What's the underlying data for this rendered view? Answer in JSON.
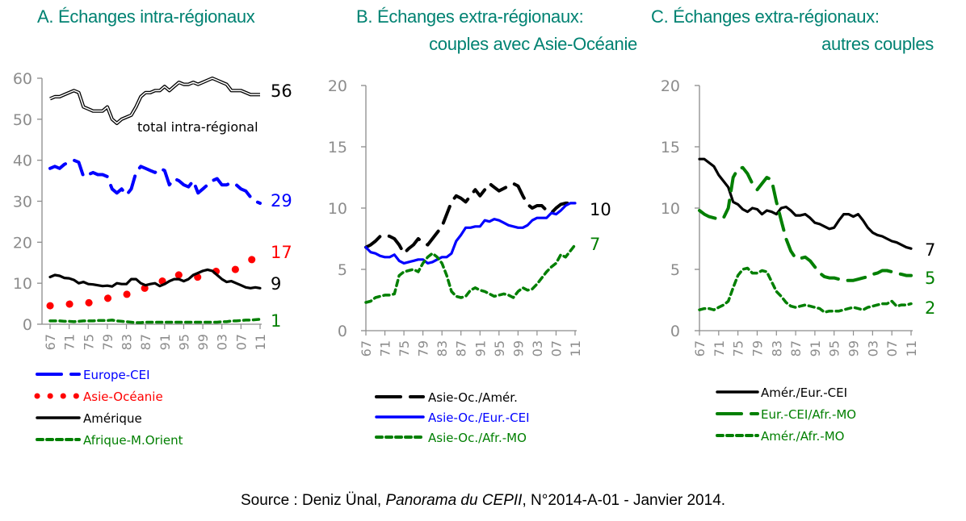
{
  "source": {
    "prefix": "Source : Deniz Ünal, ",
    "publication": "Panorama du CEPII",
    "suffix": ", N°2014-A-01 - Janvier 2014."
  },
  "colors": {
    "title": "#008272",
    "blue": "#0000ff",
    "red": "#ff0000",
    "black": "#000000",
    "green": "#007f00",
    "axis": "#8c8c8c"
  },
  "chart_data": [
    {
      "type": "line",
      "panel": "A",
      "title": [
        "A. Échanges intra-régionaux"
      ],
      "xlabel": "",
      "ylabel": "",
      "ylim": [
        0,
        60
      ],
      "yticks": [
        0,
        10,
        20,
        30,
        40,
        50,
        60
      ],
      "x": [
        1967,
        1968,
        1969,
        1970,
        1971,
        1972,
        1973,
        1974,
        1975,
        1976,
        1977,
        1978,
        1979,
        1980,
        1981,
        1982,
        1983,
        1984,
        1985,
        1986,
        1987,
        1988,
        1989,
        1990,
        1991,
        1992,
        1993,
        1994,
        1995,
        1996,
        1997,
        1998,
        1999,
        2000,
        2001,
        2002,
        2003,
        2004,
        2005,
        2006,
        2007,
        2008,
        2009,
        2010,
        2011
      ],
      "xtick_labels": [
        "67",
        "71",
        "75",
        "79",
        "83",
        "87",
        "91",
        "95",
        "99",
        "03",
        "07",
        "11"
      ],
      "grid": false,
      "annotations": [
        {
          "text": "total intra-régional",
          "near_series": "total"
        }
      ],
      "series": [
        {
          "name": "total",
          "label": "56",
          "style": "double",
          "color": "#000000",
          "values": [
            55,
            55.5,
            55.5,
            56,
            56.5,
            57,
            56.5,
            53,
            52.5,
            52,
            52,
            52,
            53,
            50,
            49,
            50,
            50.5,
            51,
            53,
            55.5,
            56.5,
            56.5,
            57,
            57,
            58,
            57,
            58,
            59,
            58.5,
            58.5,
            59,
            58.5,
            59,
            59.5,
            60,
            59.5,
            59,
            58.5,
            57,
            57,
            57,
            56.5,
            56,
            56,
            56
          ]
        },
        {
          "name": "Europe-CEI",
          "label": "29",
          "style": "longdash",
          "color": "#0000ff",
          "values": [
            38,
            38.5,
            38,
            39,
            39.5,
            40,
            39.5,
            36,
            36.5,
            37,
            36.5,
            36.5,
            36,
            33,
            32,
            33,
            31.5,
            33,
            37,
            38.5,
            38,
            37.5,
            37,
            38,
            37.5,
            34,
            35.5,
            35,
            34,
            33.5,
            35,
            32,
            33,
            34,
            35,
            35.5,
            34,
            34,
            34.5,
            34,
            33,
            32.5,
            31,
            30,
            29.5
          ]
        },
        {
          "name": "Asie-Océanie",
          "label": "17",
          "style": "dots",
          "color": "#ff0000",
          "values": [
            4.5,
            4.6,
            4.7,
            4.8,
            4.9,
            5,
            5.1,
            5.2,
            5.2,
            5.5,
            5.7,
            6,
            6.3,
            6.6,
            6.9,
            7.1,
            7.3,
            7.3,
            8,
            8.7,
            8.8,
            9,
            9.3,
            10,
            11,
            12,
            12.5,
            12,
            11.5,
            11.3,
            11.3,
            11.5,
            11.6,
            12,
            12.5,
            13,
            13.1,
            13.2,
            13.2,
            13.4,
            13.8,
            14.5,
            15.5,
            16.5,
            16.8
          ]
        },
        {
          "name": "Amérique",
          "label": "9",
          "style": "solid",
          "color": "#000000",
          "values": [
            11.5,
            12,
            11.8,
            11.3,
            11.2,
            10.8,
            10,
            10.3,
            9.8,
            9.7,
            9.5,
            9.3,
            9.4,
            9.2,
            10,
            9.8,
            9.8,
            11,
            11,
            10,
            9.5,
            9.8,
            10,
            9.3,
            9.8,
            10.5,
            11,
            11,
            10.5,
            11,
            12,
            12.5,
            13,
            13.3,
            13,
            12,
            11,
            10.3,
            10.5,
            10,
            9.5,
            9,
            8.8,
            9,
            8.8
          ]
        },
        {
          "name": "Afrique-M.Orient",
          "label": "1",
          "style": "dash",
          "color": "#007f00",
          "values": [
            0.8,
            0.8,
            0.8,
            0.7,
            0.7,
            0.6,
            0.7,
            0.8,
            0.8,
            0.8,
            0.9,
            0.9,
            0.9,
            1,
            0.8,
            0.7,
            0.6,
            0.5,
            0.4,
            0.4,
            0.5,
            0.5,
            0.5,
            0.5,
            0.5,
            0.5,
            0.5,
            0.5,
            0.5,
            0.5,
            0.5,
            0.5,
            0.5,
            0.5,
            0.5,
            0.5,
            0.6,
            0.6,
            0.8,
            0.8,
            0.9,
            1,
            1,
            1.1,
            1.2
          ]
        }
      ],
      "legend": [
        {
          "label": "Europe-CEI",
          "color": "#0000ff",
          "style": "longdash"
        },
        {
          "label": "Asie-Océanie",
          "color": "#ff0000",
          "style": "dots"
        },
        {
          "label": "Amérique",
          "color": "#000000",
          "style": "solid"
        },
        {
          "label": "Afrique-M.Orient",
          "color": "#007f00",
          "style": "dash"
        }
      ],
      "legend_position": "bottom-left"
    },
    {
      "type": "line",
      "panel": "B",
      "title": [
        "B. Échanges extra-régionaux:",
        "couples avec Asie-Océanie"
      ],
      "xlabel": "",
      "ylabel": "",
      "ylim": [
        0,
        20
      ],
      "yticks": [
        0,
        5,
        10,
        15,
        20
      ],
      "x": [
        1967,
        1968,
        1969,
        1970,
        1971,
        1972,
        1973,
        1974,
        1975,
        1976,
        1977,
        1978,
        1979,
        1980,
        1981,
        1982,
        1983,
        1984,
        1985,
        1986,
        1987,
        1988,
        1989,
        1990,
        1991,
        1992,
        1993,
        1994,
        1995,
        1996,
        1997,
        1998,
        1999,
        2000,
        2001,
        2002,
        2003,
        2004,
        2005,
        2006,
        2007,
        2008,
        2009,
        2010,
        2011
      ],
      "xtick_labels": [
        "67",
        "71",
        "75",
        "79",
        "83",
        "87",
        "91",
        "95",
        "99",
        "03",
        "07",
        "11"
      ],
      "grid": false,
      "series": [
        {
          "name": "Asie-Oc./Amér.",
          "label": "10",
          "style": "longdash",
          "color": "#000000",
          "values": [
            6.8,
            7,
            7.3,
            7.7,
            7.8,
            7.7,
            7.5,
            7,
            6.3,
            6.7,
            7,
            7.5,
            7.2,
            7,
            7.5,
            8,
            8.5,
            9.5,
            10.5,
            11,
            10.8,
            10.5,
            11,
            11.5,
            11,
            11.5,
            12,
            11.7,
            11.4,
            11.6,
            11.8,
            12,
            11.8,
            11,
            10.3,
            10,
            10.2,
            10.2,
            9.8,
            9.6,
            10,
            10.3,
            10.4,
            10.4,
            10.4
          ]
        },
        {
          "name": "Asie-Oc./Eur.-CEI",
          "label": "10",
          "style": "solid",
          "color": "#0000ff",
          "values": [
            6.8,
            6.4,
            6.3,
            6.1,
            6,
            6,
            6.2,
            5.7,
            5.5,
            5.6,
            5.7,
            5.8,
            5.8,
            5.5,
            5.6,
            5.8,
            6,
            6,
            6.3,
            7.3,
            7.8,
            8.4,
            8.4,
            8.5,
            8.5,
            9,
            8.9,
            9.1,
            9,
            8.8,
            8.6,
            8.5,
            8.4,
            8.4,
            8.6,
            9,
            9.2,
            9.2,
            9.2,
            9.6,
            9.5,
            9.8,
            10.2,
            10.4,
            10.4
          ]
        },
        {
          "name": "Asie-Oc./Afr.-MO",
          "label": "7",
          "style": "dash",
          "color": "#007f00",
          "values": [
            2.3,
            2.4,
            2.7,
            2.8,
            2.9,
            2.9,
            3,
            4.5,
            4.8,
            4.9,
            5,
            4.8,
            5.5,
            6,
            6.3,
            6,
            5.5,
            4.5,
            3.2,
            2.8,
            2.7,
            2.8,
            3.3,
            3.5,
            3.3,
            3.2,
            3,
            2.8,
            2.9,
            3,
            2.9,
            2.7,
            3.2,
            3.5,
            3.3,
            3.4,
            3.8,
            4.3,
            4.8,
            5.2,
            5.5,
            6.2,
            6,
            6.5,
            7
          ]
        }
      ],
      "legend": [
        {
          "label": "Asie-Oc./Amér.",
          "color": "#000000",
          "style": "longdash"
        },
        {
          "label": "Asie-Oc./Eur.-CEI",
          "color": "#0000ff",
          "style": "solid"
        },
        {
          "label": "Asie-Oc./Afr.-MO",
          "color": "#007f00",
          "style": "dash"
        }
      ],
      "legend_position": "bottom-left"
    },
    {
      "type": "line",
      "panel": "C",
      "title": [
        "C. Échanges extra-régionaux:",
        "autres couples"
      ],
      "xlabel": "",
      "ylabel": "",
      "ylim": [
        0,
        20
      ],
      "yticks": [
        0,
        5,
        10,
        15,
        20
      ],
      "x": [
        1967,
        1968,
        1969,
        1970,
        1971,
        1972,
        1973,
        1974,
        1975,
        1976,
        1977,
        1978,
        1979,
        1980,
        1981,
        1982,
        1983,
        1984,
        1985,
        1986,
        1987,
        1988,
        1989,
        1990,
        1991,
        1992,
        1993,
        1994,
        1995,
        1996,
        1997,
        1998,
        1999,
        2000,
        2001,
        2002,
        2003,
        2004,
        2005,
        2006,
        2007,
        2008,
        2009,
        2010,
        2011
      ],
      "xtick_labels": [
        "67",
        "71",
        "75",
        "79",
        "83",
        "87",
        "91",
        "95",
        "99",
        "03",
        "07",
        "11"
      ],
      "grid": false,
      "series": [
        {
          "name": "Amér./Eur.-CEI",
          "label": "7",
          "style": "solid",
          "color": "#000000",
          "values": [
            14,
            14,
            13.7,
            13.4,
            12.7,
            12.2,
            11.7,
            10.5,
            10.3,
            9.9,
            9.7,
            10,
            9.9,
            9.5,
            9.8,
            9.7,
            9.5,
            10,
            10.1,
            9.8,
            9.4,
            9.4,
            9.5,
            9.2,
            8.8,
            8.7,
            8.5,
            8.3,
            8.4,
            9,
            9.5,
            9.5,
            9.3,
            9.5,
            9,
            8.4,
            8,
            7.8,
            7.7,
            7.5,
            7.3,
            7.2,
            7,
            6.8,
            6.7
          ]
        },
        {
          "name": "Eur.-CEI/Afr.-MO",
          "label": "5",
          "style": "longdash",
          "color": "#007f00",
          "values": [
            9.8,
            9.5,
            9.3,
            9.2,
            9.1,
            9.2,
            10,
            12.5,
            13.2,
            13.3,
            12.8,
            12,
            11.5,
            12,
            12.5,
            12.3,
            10.5,
            9,
            7.5,
            6.5,
            5.9,
            5.9,
            6,
            5.7,
            5.2,
            4.7,
            4.4,
            4.3,
            4.3,
            4.2,
            4.1,
            4.1,
            4.1,
            4.2,
            4.3,
            4.4,
            4.6,
            4.7,
            4.9,
            4.9,
            4.8,
            4.7,
            4.6,
            4.5,
            4.5
          ]
        },
        {
          "name": "Amér./Afr.-MO",
          "label": "2",
          "style": "dash",
          "color": "#007f00",
          "values": [
            1.7,
            1.8,
            1.8,
            1.7,
            1.9,
            2.1,
            2.4,
            3.5,
            4.5,
            5,
            5.1,
            4.7,
            4.7,
            4.9,
            4.8,
            4,
            3.2,
            2.8,
            2.3,
            2,
            1.9,
            2,
            2.1,
            2,
            1.9,
            1.8,
            1.5,
            1.6,
            1.6,
            1.6,
            1.7,
            1.8,
            1.9,
            1.8,
            1.7,
            1.9,
            2,
            2.1,
            2.2,
            2.2,
            2.4,
            2,
            2.1,
            2.1,
            2.2
          ]
        }
      ],
      "legend": [
        {
          "label": "Amér./Eur.-CEI",
          "color": "#000000",
          "style": "solid"
        },
        {
          "label": "Eur.-CEI/Afr.-MO",
          "color": "#007f00",
          "style": "longdash"
        },
        {
          "label": "Amér./Afr.-MO",
          "color": "#007f00",
          "style": "dash"
        }
      ],
      "legend_position": "bottom-left"
    }
  ]
}
